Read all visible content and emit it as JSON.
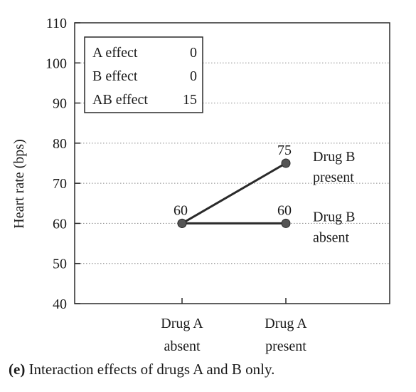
{
  "chart_data": {
    "type": "line",
    "ylabel": "Heart rate (bps)",
    "ylim": [
      40,
      110
    ],
    "yticks": [
      40,
      50,
      60,
      70,
      80,
      90,
      100,
      110
    ],
    "categories": [
      [
        "Drug A",
        "absent"
      ],
      [
        "Drug A",
        "present"
      ]
    ],
    "series": [
      {
        "name": [
          "Drug B",
          "present"
        ],
        "values": [
          60,
          75
        ],
        "data_labels": [
          "60",
          "75"
        ]
      },
      {
        "name": [
          "Drug B",
          "absent"
        ],
        "values": [
          60,
          60
        ],
        "data_labels": [
          "60",
          "60"
        ]
      }
    ],
    "grid": "dotted-horizontal",
    "effects_box": [
      {
        "label": "A effect",
        "value": "0"
      },
      {
        "label": "B effect",
        "value": "0"
      },
      {
        "label": "AB effect",
        "value": "15"
      }
    ]
  },
  "caption": {
    "prefix": "(e)",
    "text": " Interaction effects of drugs A and B only."
  },
  "colors": {
    "line": "#2a2a2a",
    "marker": "#555555",
    "grid": "#8a8a8a"
  }
}
